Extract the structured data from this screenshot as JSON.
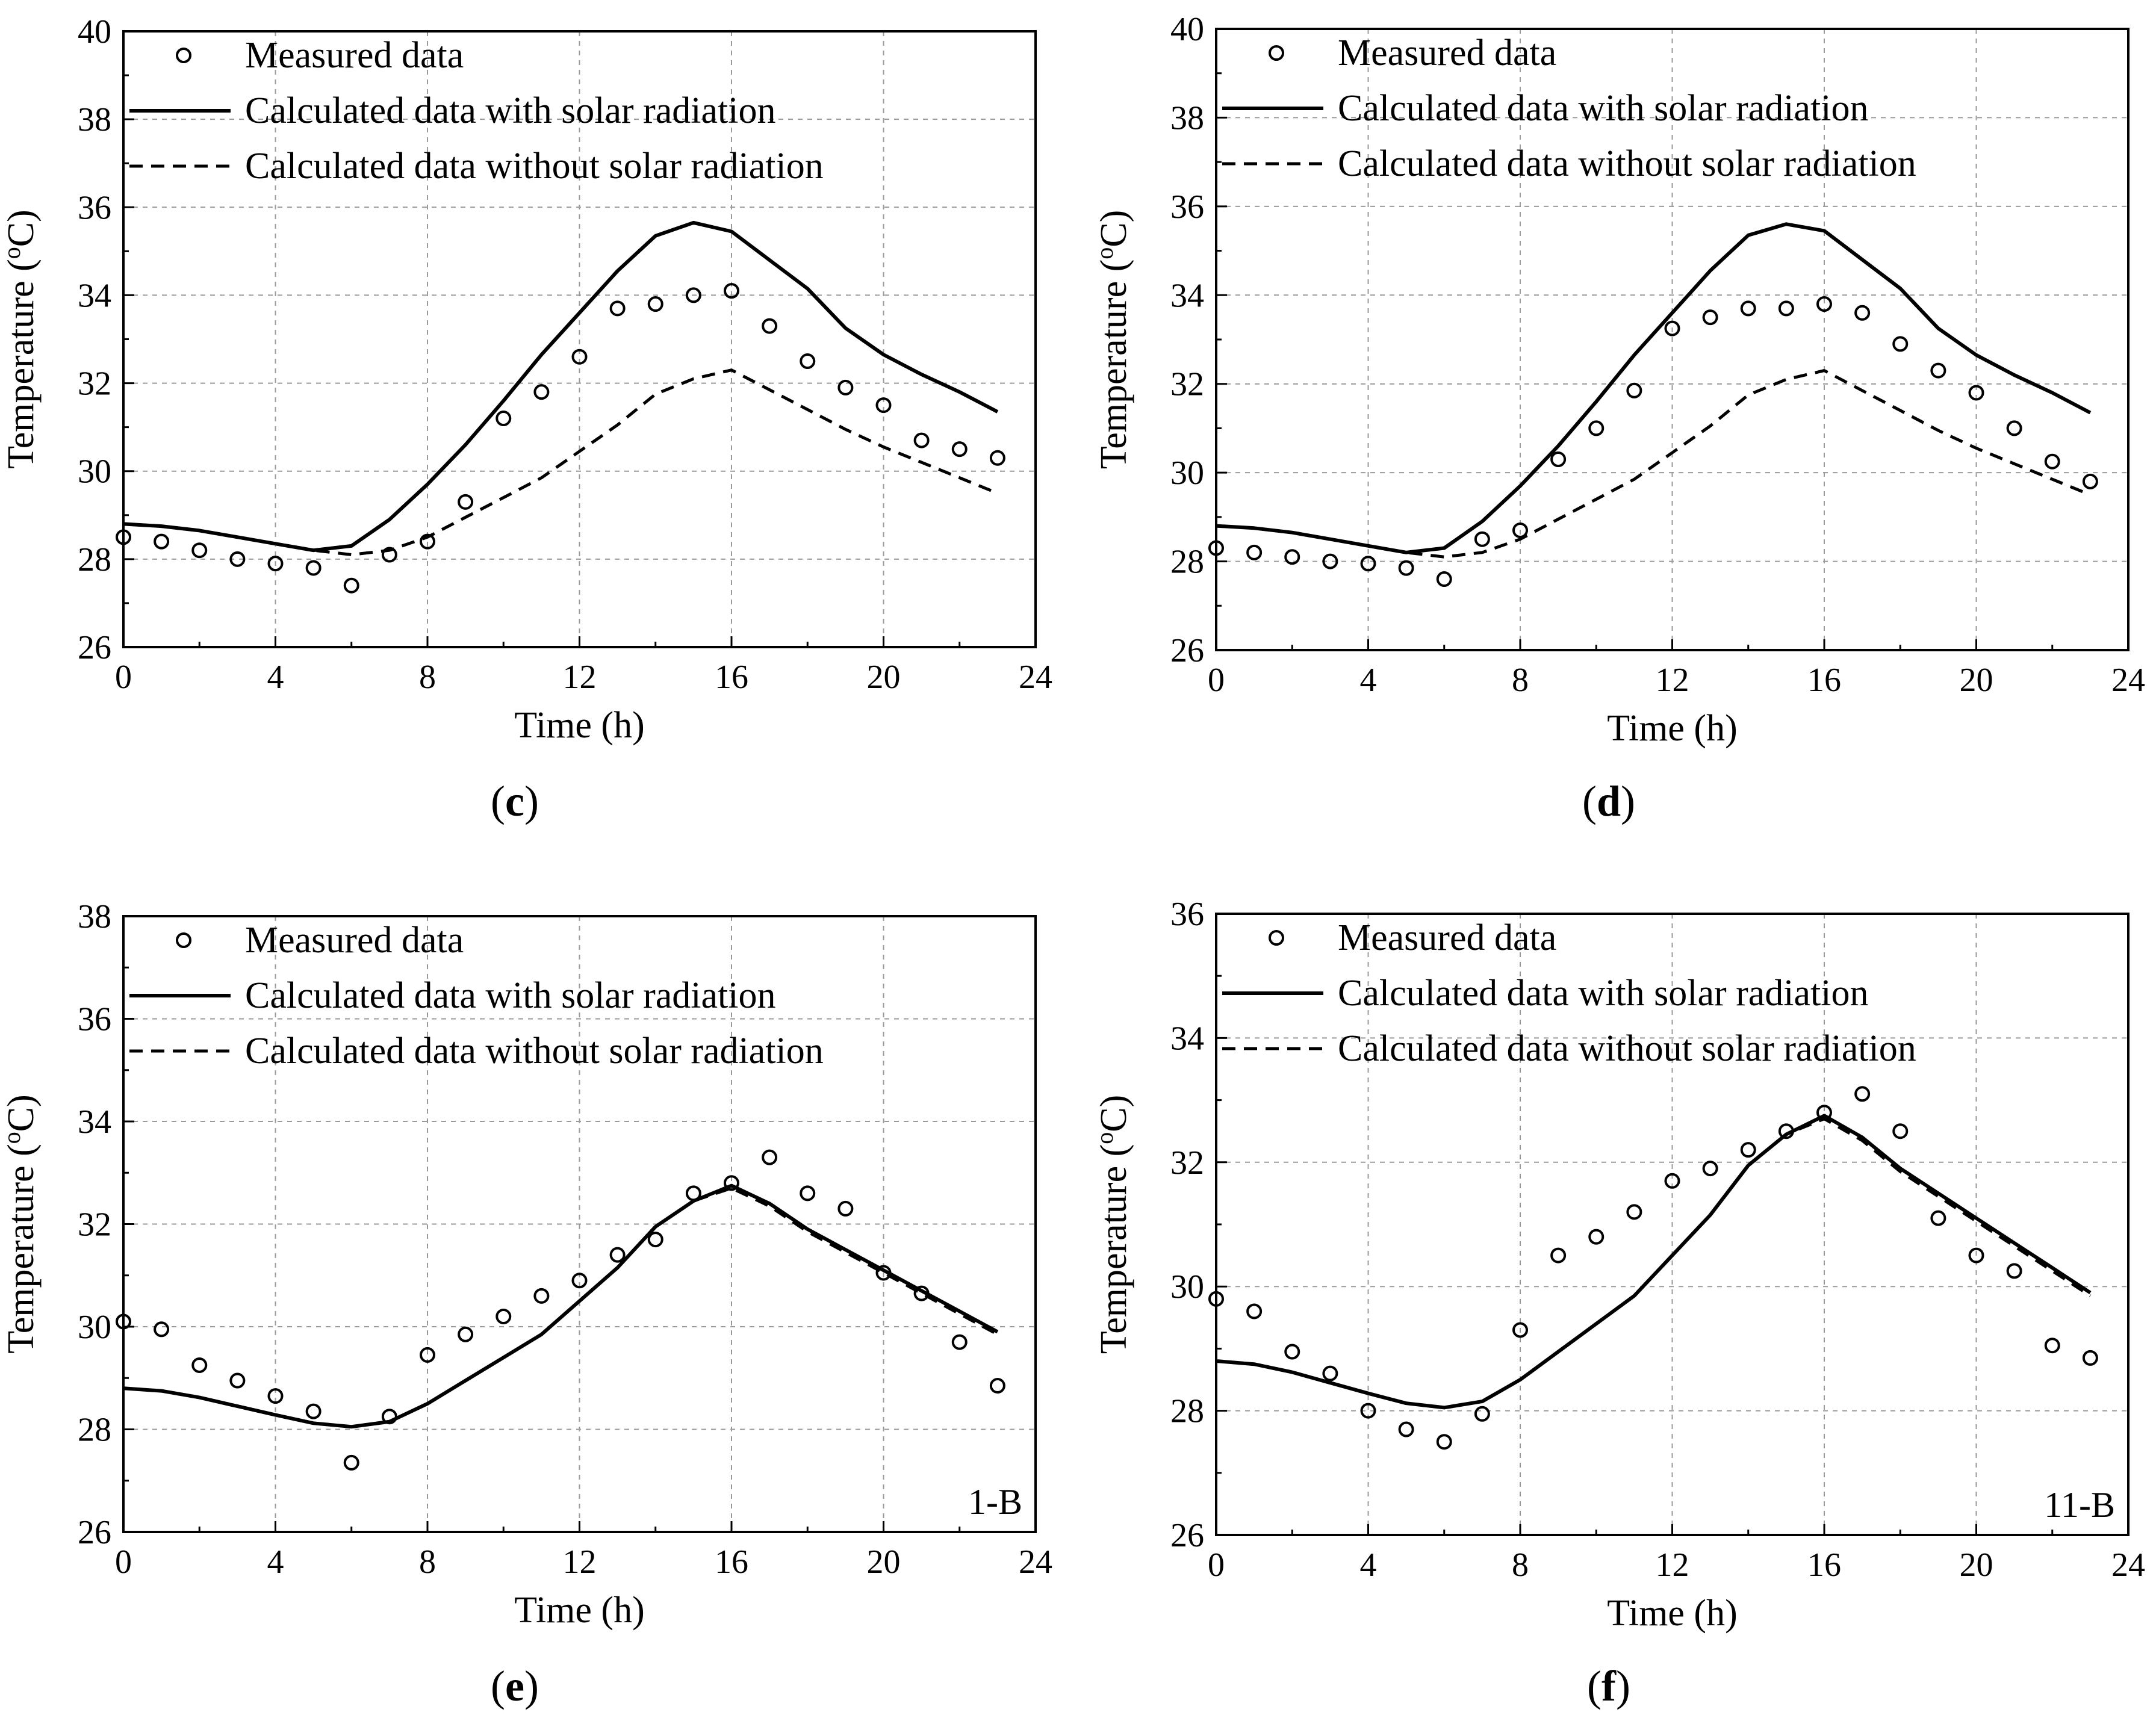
{
  "figure": {
    "series_names": {
      "measured": "Measured data",
      "with_solar": "Calculated data with solar radiation",
      "without_solar": "Calculated data without solar radiation"
    },
    "colors": {
      "ink": "#000000",
      "grid": "#9a9a9a",
      "background": "#ffffff"
    }
  },
  "chart_data": [
    {
      "type": "line",
      "panel": "c",
      "caption_open": "(",
      "caption_letter": "c",
      "caption_close": ")",
      "tag": "",
      "title": "",
      "xlabel": "Time (h)",
      "ylabel": "Temperature (oC)",
      "xlim": [
        0,
        24
      ],
      "ylim": [
        26,
        40
      ],
      "xticks": [
        0,
        4,
        8,
        12,
        16,
        20,
        24
      ],
      "yticks": [
        26,
        28,
        30,
        32,
        34,
        36,
        38,
        40
      ],
      "grid": true,
      "legend": "top-left",
      "series": [
        {
          "name": "Measured data",
          "style": "circles",
          "x": [
            0,
            1,
            2,
            3,
            4,
            5,
            6,
            7,
            8,
            9,
            10,
            11,
            12,
            13,
            14,
            15,
            16,
            17,
            18,
            19,
            20,
            21,
            22,
            23
          ],
          "y": [
            28.5,
            28.4,
            28.2,
            28.0,
            27.9,
            27.8,
            27.4,
            28.1,
            28.4,
            29.3,
            31.2,
            31.8,
            32.6,
            33.7,
            33.8,
            34.0,
            34.1,
            33.3,
            32.5,
            31.9,
            31.5,
            30.7,
            30.5,
            30.3
          ]
        },
        {
          "name": "Calculated data with solar radiation",
          "style": "solid",
          "x": [
            0,
            1,
            2,
            3,
            4,
            5,
            6,
            7,
            8,
            9,
            10,
            11,
            12,
            13,
            14,
            15,
            16,
            17,
            18,
            19,
            20,
            21,
            22,
            23
          ],
          "y": [
            28.8,
            28.75,
            28.65,
            28.5,
            28.35,
            28.2,
            28.3,
            28.9,
            29.7,
            30.6,
            31.6,
            32.65,
            33.6,
            34.55,
            35.35,
            35.65,
            35.45,
            34.8,
            34.15,
            33.25,
            32.65,
            32.2,
            31.8,
            31.35
          ]
        },
        {
          "name": "Calculated data without solar radiation",
          "style": "dashed",
          "x": [
            0,
            1,
            2,
            3,
            4,
            5,
            6,
            7,
            8,
            9,
            10,
            11,
            12,
            13,
            14,
            15,
            16,
            17,
            18,
            19,
            20,
            21,
            22,
            23
          ],
          "y": [
            28.8,
            28.75,
            28.65,
            28.5,
            28.35,
            28.2,
            28.1,
            28.2,
            28.5,
            28.95,
            29.4,
            29.85,
            30.45,
            31.05,
            31.75,
            32.1,
            32.3,
            31.85,
            31.4,
            30.95,
            30.55,
            30.2,
            29.85,
            29.5
          ]
        }
      ]
    },
    {
      "type": "line",
      "panel": "d",
      "caption_open": "(",
      "caption_letter": "d",
      "caption_close": ")",
      "tag": "",
      "title": "",
      "xlabel": "Time (h)",
      "ylabel": "Temperature (oC)",
      "xlim": [
        0,
        24
      ],
      "ylim": [
        26,
        40
      ],
      "xticks": [
        0,
        4,
        8,
        12,
        16,
        20,
        24
      ],
      "yticks": [
        26,
        28,
        30,
        32,
        34,
        36,
        38,
        40
      ],
      "grid": true,
      "legend": "top-left",
      "series": [
        {
          "name": "Measured data",
          "style": "circles",
          "x": [
            0,
            1,
            2,
            3,
            4,
            5,
            6,
            7,
            8,
            9,
            10,
            11,
            12,
            13,
            14,
            15,
            16,
            17,
            18,
            19,
            20,
            21,
            22,
            23
          ],
          "y": [
            28.3,
            28.2,
            28.1,
            28.0,
            27.95,
            27.85,
            27.6,
            28.5,
            28.7,
            30.3,
            31.0,
            31.85,
            33.25,
            33.5,
            33.7,
            33.7,
            33.8,
            33.6,
            32.9,
            32.3,
            31.8,
            31.0,
            30.25,
            29.8
          ]
        },
        {
          "name": "Calculated data with solar radiation",
          "style": "solid",
          "x": [
            0,
            1,
            2,
            3,
            4,
            5,
            6,
            7,
            8,
            9,
            10,
            11,
            12,
            13,
            14,
            15,
            16,
            17,
            18,
            19,
            20,
            21,
            22,
            23
          ],
          "y": [
            28.8,
            28.75,
            28.65,
            28.5,
            28.35,
            28.2,
            28.3,
            28.9,
            29.7,
            30.6,
            31.6,
            32.65,
            33.6,
            34.55,
            35.35,
            35.6,
            35.45,
            34.8,
            34.15,
            33.25,
            32.65,
            32.2,
            31.8,
            31.35
          ]
        },
        {
          "name": "Calculated data without solar radiation",
          "style": "dashed",
          "x": [
            0,
            1,
            2,
            3,
            4,
            5,
            6,
            7,
            8,
            9,
            10,
            11,
            12,
            13,
            14,
            15,
            16,
            17,
            18,
            19,
            20,
            21,
            22,
            23
          ],
          "y": [
            28.8,
            28.75,
            28.65,
            28.5,
            28.35,
            28.2,
            28.1,
            28.2,
            28.5,
            28.95,
            29.4,
            29.85,
            30.45,
            31.05,
            31.75,
            32.1,
            32.3,
            31.85,
            31.4,
            30.95,
            30.55,
            30.2,
            29.85,
            29.5
          ]
        }
      ]
    },
    {
      "type": "line",
      "panel": "e",
      "caption_open": "(",
      "caption_letter": "e",
      "caption_close": ")",
      "tag": "1-B",
      "title": "",
      "xlabel": "Time (h)",
      "ylabel": "Temperature (oC)",
      "xlim": [
        0,
        24
      ],
      "ylim": [
        26,
        38
      ],
      "xticks": [
        0,
        4,
        8,
        12,
        16,
        20,
        24
      ],
      "yticks": [
        26,
        28,
        30,
        32,
        34,
        36,
        38
      ],
      "grid": true,
      "legend": "top-left",
      "series": [
        {
          "name": "Measured data",
          "style": "circles",
          "x": [
            0,
            1,
            2,
            3,
            4,
            5,
            6,
            7,
            8,
            9,
            10,
            11,
            12,
            13,
            14,
            15,
            16,
            17,
            18,
            19,
            20,
            21,
            22,
            23
          ],
          "y": [
            30.1,
            29.95,
            29.25,
            28.95,
            28.65,
            28.35,
            27.35,
            28.25,
            29.45,
            29.85,
            30.2,
            30.6,
            30.9,
            31.4,
            31.7,
            32.6,
            32.8,
            33.3,
            32.6,
            32.3,
            31.05,
            30.65,
            29.7,
            28.85
          ]
        },
        {
          "name": "Calculated data with solar radiation",
          "style": "solid",
          "x": [
            0,
            1,
            2,
            3,
            4,
            5,
            6,
            7,
            8,
            9,
            10,
            11,
            12,
            13,
            14,
            15,
            16,
            17,
            18,
            19,
            20,
            21,
            22,
            23
          ],
          "y": [
            28.8,
            28.75,
            28.62,
            28.45,
            28.28,
            28.12,
            28.05,
            28.15,
            28.5,
            28.95,
            29.4,
            29.85,
            30.5,
            31.15,
            31.95,
            32.45,
            32.75,
            32.4,
            31.9,
            31.5,
            31.1,
            30.7,
            30.3,
            29.9
          ]
        },
        {
          "name": "Calculated data without solar radiation",
          "style": "dashed",
          "x": [
            0,
            1,
            2,
            3,
            4,
            5,
            6,
            7,
            8,
            9,
            10,
            11,
            12,
            13,
            14,
            15,
            16,
            17,
            18,
            19,
            20,
            21,
            22,
            23
          ],
          "y": [
            28.8,
            28.75,
            28.62,
            28.45,
            28.28,
            28.12,
            28.05,
            28.15,
            28.5,
            28.95,
            29.4,
            29.85,
            30.5,
            31.15,
            31.95,
            32.45,
            32.7,
            32.35,
            31.85,
            31.45,
            31.05,
            30.65,
            30.25,
            29.85
          ]
        }
      ]
    },
    {
      "type": "line",
      "panel": "f",
      "caption_open": "(",
      "caption_letter": "f",
      "caption_close": ")",
      "tag": "11-B",
      "title": "",
      "xlabel": "Time (h)",
      "ylabel": "Temperature (oC)",
      "xlim": [
        0,
        24
      ],
      "ylim": [
        26,
        36
      ],
      "xticks": [
        0,
        4,
        8,
        12,
        16,
        20,
        24
      ],
      "yticks": [
        26,
        28,
        30,
        32,
        34,
        36
      ],
      "grid": true,
      "legend": "top-left",
      "series": [
        {
          "name": "Measured data",
          "style": "circles",
          "x": [
            0,
            1,
            2,
            3,
            4,
            5,
            6,
            7,
            8,
            9,
            10,
            11,
            12,
            13,
            14,
            15,
            16,
            17,
            18,
            19,
            20,
            21,
            22,
            23
          ],
          "y": [
            29.8,
            29.6,
            28.95,
            28.6,
            28.0,
            27.7,
            27.5,
            27.95,
            29.3,
            30.5,
            30.8,
            31.2,
            31.7,
            31.9,
            32.2,
            32.5,
            32.8,
            33.1,
            32.5,
            31.1,
            30.5,
            30.25,
            29.05,
            28.85
          ]
        },
        {
          "name": "Calculated data with solar radiation",
          "style": "solid",
          "x": [
            0,
            1,
            2,
            3,
            4,
            5,
            6,
            7,
            8,
            9,
            10,
            11,
            12,
            13,
            14,
            15,
            16,
            17,
            18,
            19,
            20,
            21,
            22,
            23
          ],
          "y": [
            28.8,
            28.75,
            28.62,
            28.45,
            28.28,
            28.12,
            28.05,
            28.15,
            28.5,
            28.95,
            29.4,
            29.85,
            30.5,
            31.15,
            31.95,
            32.45,
            32.75,
            32.4,
            31.9,
            31.5,
            31.1,
            30.7,
            30.3,
            29.9
          ]
        },
        {
          "name": "Calculated data without solar radiation",
          "style": "dashed",
          "x": [
            0,
            1,
            2,
            3,
            4,
            5,
            6,
            7,
            8,
            9,
            10,
            11,
            12,
            13,
            14,
            15,
            16,
            17,
            18,
            19,
            20,
            21,
            22,
            23
          ],
          "y": [
            28.8,
            28.75,
            28.62,
            28.45,
            28.28,
            28.12,
            28.05,
            28.15,
            28.5,
            28.95,
            29.4,
            29.85,
            30.5,
            31.15,
            31.95,
            32.45,
            32.7,
            32.35,
            31.85,
            31.45,
            31.05,
            30.65,
            30.25,
            29.85
          ]
        }
      ]
    }
  ]
}
